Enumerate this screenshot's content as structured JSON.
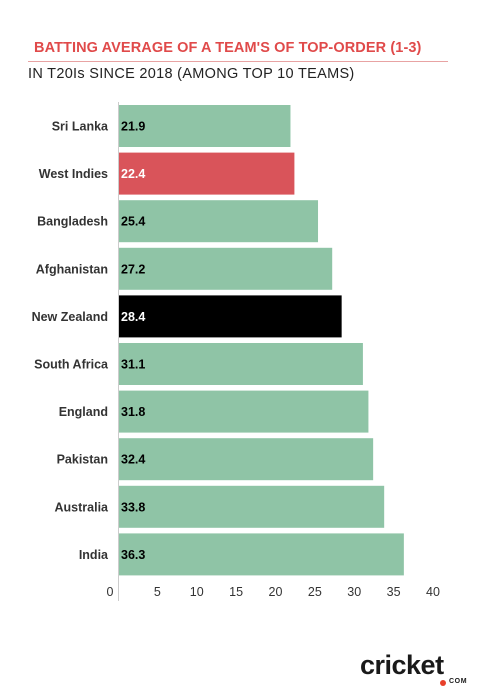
{
  "header": {
    "title": "BATTING AVERAGE OF A TEAM'S OF TOP-ORDER (1-3)",
    "subtitle": "IN T20Is SINCE 2018 (AMONG TOP 10 TEAMS)"
  },
  "colors": {
    "default_bar": "#8fc4a6",
    "west_indies_bar": "#d9545a",
    "new_zealand_bar": "#000000",
    "title": "#e04a4a"
  },
  "chart_data": {
    "type": "bar",
    "orientation": "horizontal",
    "title": "BATTING AVERAGE OF A TEAM'S OF TOP-ORDER (1-3)",
    "subtitle": "IN T20Is SINCE 2018 (AMONG TOP 10 TEAMS)",
    "categories": [
      "Sri Lanka",
      "West Indies",
      "Bangladesh",
      "Afghanistan",
      "New Zealand",
      "South Africa",
      "England",
      "Pakistan",
      "Australia",
      "India"
    ],
    "values": [
      21.9,
      22.4,
      25.4,
      27.2,
      28.4,
      31.1,
      31.8,
      32.4,
      33.8,
      36.3
    ],
    "data_labels": [
      "21.9",
      "22.4",
      "25.4",
      "27.2",
      "28.4",
      "31.1",
      "31.8",
      "32.4",
      "33.8",
      "36.3"
    ],
    "bar_colors": [
      "#8fc4a6",
      "#d9545a",
      "#8fc4a6",
      "#8fc4a6",
      "#000000",
      "#8fc4a6",
      "#8fc4a6",
      "#8fc4a6",
      "#8fc4a6",
      "#8fc4a6"
    ],
    "label_colors": [
      "#000000",
      "#ffffff",
      "#000000",
      "#000000",
      "#ffffff",
      "#000000",
      "#000000",
      "#000000",
      "#000000",
      "#000000"
    ],
    "x_ticks": [
      "0",
      "5",
      "10",
      "15",
      "20",
      "25",
      "30",
      "35",
      "40"
    ],
    "xlim": [
      0,
      40
    ],
    "grid": false,
    "legend": "none"
  },
  "logo": {
    "main": "cricket",
    "sub": "COM"
  }
}
